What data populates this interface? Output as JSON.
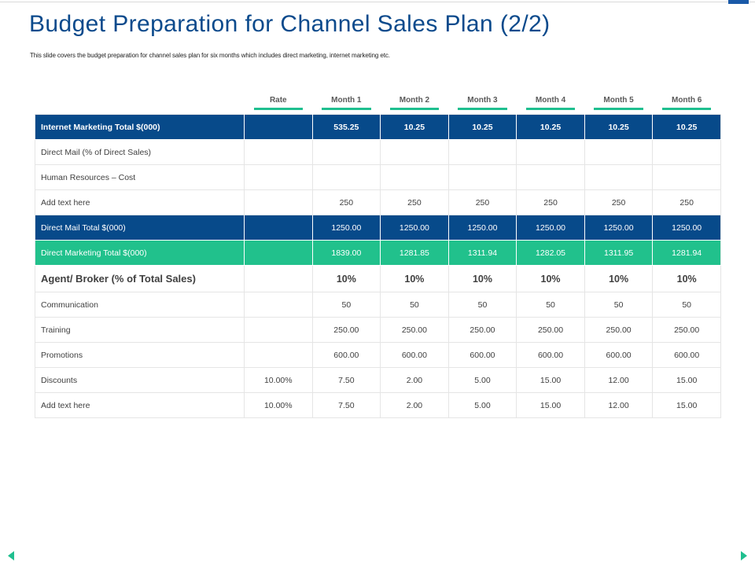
{
  "slide": {
    "title": "Budget Preparation for Channel Sales Plan (2/2)",
    "subtitle": "This slide covers the budget preparation for channel sales plan for six months which includes direct marketing, internet marketing etc."
  },
  "table": {
    "headers": [
      "",
      "Rate",
      "Month 1",
      "Month 2",
      "Month 3",
      "Month 4",
      "Month 5",
      "Month 6"
    ],
    "rows": [
      {
        "style": "blue first",
        "cells": [
          "Internet Marketing Total $(000)",
          "",
          "535.25",
          "10.25",
          "10.25",
          "10.25",
          "10.25",
          "10.25"
        ]
      },
      {
        "style": "",
        "cells": [
          "Direct Mail (% of Direct Sales)",
          "",
          "",
          "",
          "",
          "",
          "",
          ""
        ]
      },
      {
        "style": "",
        "cells": [
          "Human Resources – Cost",
          "",
          "",
          "",
          "",
          "",
          "",
          ""
        ]
      },
      {
        "style": "",
        "cells": [
          "Add text here",
          "",
          "250",
          "250",
          "250",
          "250",
          "250",
          "250"
        ]
      },
      {
        "style": "blue",
        "cells": [
          "Direct Mail Total $(000)",
          "",
          "1250.00",
          "1250.00",
          "1250.00",
          "1250.00",
          "1250.00",
          "1250.00"
        ]
      },
      {
        "style": "green",
        "cells": [
          "Direct Marketing Total $(000)",
          "",
          "1839.00",
          "1281.85",
          "1311.94",
          "1282.05",
          "1311.95",
          "1281.94"
        ]
      },
      {
        "style": "agent",
        "cells": [
          "Agent/ Broker (% of Total Sales)",
          "",
          "10%",
          "10%",
          "10%",
          "10%",
          "10%",
          "10%"
        ]
      },
      {
        "style": "",
        "cells": [
          "Communication",
          "",
          "50",
          "50",
          "50",
          "50",
          "50",
          "50"
        ]
      },
      {
        "style": "",
        "cells": [
          "Training",
          "",
          "250.00",
          "250.00",
          "250.00",
          "250.00",
          "250.00",
          "250.00"
        ]
      },
      {
        "style": "",
        "cells": [
          "Promotions",
          "",
          "600.00",
          "600.00",
          "600.00",
          "600.00",
          "600.00",
          "600.00"
        ]
      },
      {
        "style": "",
        "cells": [
          "Discounts",
          "10.00%",
          "7.50",
          "2.00",
          "5.00",
          "15.00",
          "12.00",
          "15.00"
        ]
      },
      {
        "style": "",
        "cells": [
          "Add text here",
          "10.00%",
          "7.50",
          "2.00",
          "5.00",
          "15.00",
          "12.00",
          "15.00"
        ]
      }
    ]
  },
  "nav": {
    "prev_icon": "triangle-left-icon",
    "next_icon": "triangle-right-icon"
  },
  "colors": {
    "title": "#0b4a8c",
    "blue_row": "#074a8a",
    "green_row": "#21c18c",
    "accent": "#1fbf8f"
  }
}
